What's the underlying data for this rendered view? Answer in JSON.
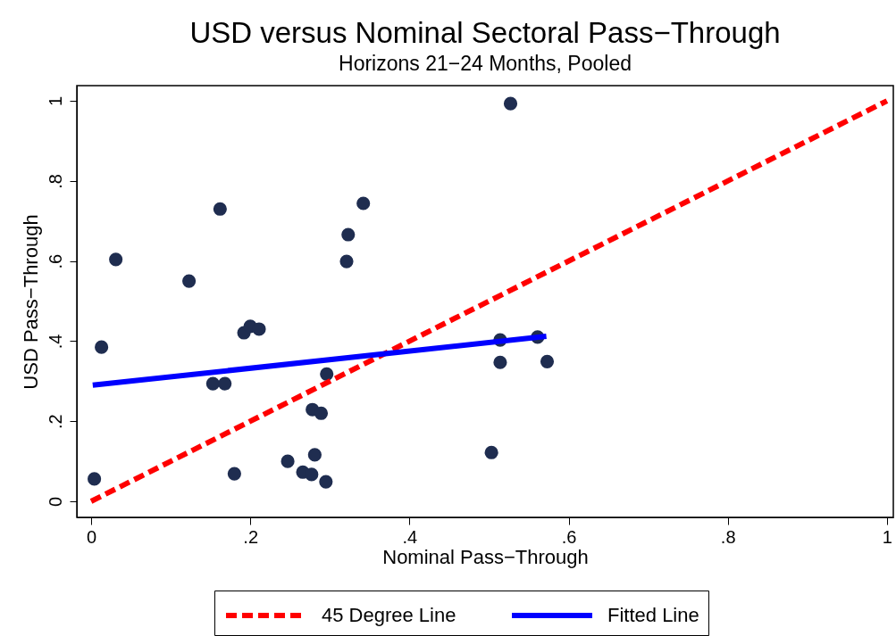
{
  "chart_data": {
    "type": "scatter",
    "title": "USD versus Nominal Sectoral Pass−Through",
    "subtitle": "Horizons 21−24 Months, Pooled",
    "xlabel": "Nominal Pass−Through",
    "ylabel": "USD Pass−Through",
    "xlim": [
      -0.018,
      1.008
    ],
    "ylim": [
      -0.04,
      1.038
    ],
    "xticks": [
      0,
      {
        "value": 0.2,
        "label": ".2"
      },
      {
        "value": 0.4,
        "label": ".4"
      },
      {
        "value": 0.6,
        "label": ".6"
      },
      {
        "value": 0.8,
        "label": ".8"
      },
      1
    ],
    "yticks": [
      0,
      {
        "value": 0.2,
        "label": ".2"
      },
      {
        "value": 0.4,
        "label": ".4"
      },
      {
        "value": 0.6,
        "label": ".6"
      },
      {
        "value": 0.8,
        "label": ".8"
      },
      1
    ],
    "grid": false,
    "legend": "bottom",
    "series": [
      {
        "color": "#1f2d50",
        "marker": "circle",
        "x": [
          0.004,
          0.013,
          0.031,
          0.123,
          0.162,
          0.153,
          0.168,
          0.192,
          0.2,
          0.211,
          0.18,
          0.247,
          0.266,
          0.277,
          0.281,
          0.295,
          0.278,
          0.289,
          0.296,
          0.321,
          0.323,
          0.342,
          0.527,
          0.503,
          0.514,
          0.514,
          0.561,
          0.573
        ],
        "values": [
          0.056,
          0.385,
          0.604,
          0.55,
          0.73,
          0.294,
          0.294,
          0.421,
          0.437,
          0.43,
          0.069,
          0.1,
          0.073,
          0.067,
          0.116,
          0.049,
          0.229,
          0.22,
          0.318,
          0.599,
          0.666,
          0.744,
          0.993,
          0.122,
          0.403,
          0.347,
          0.41,
          0.349
        ]
      },
      {
        "type": "line",
        "name": "45 Degree Line",
        "color": "#ff0000",
        "line_style": "dashed",
        "x": [
          0,
          1
        ],
        "values": [
          0,
          1
        ]
      },
      {
        "type": "line",
        "name": "Fitted Line",
        "color": "#0000ff",
        "line_style": "solid",
        "x": [
          0.002,
          0.572
        ],
        "values": [
          0.29,
          0.412
        ]
      }
    ]
  }
}
